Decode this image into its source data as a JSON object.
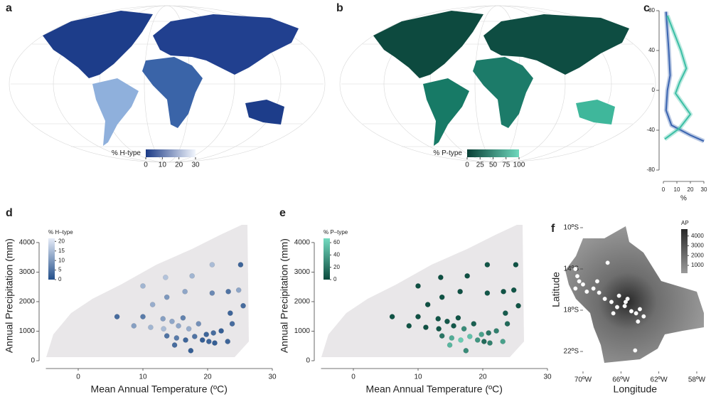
{
  "chart_data": [
    {
      "type": "map",
      "label": "a",
      "legend_title": "% H-type",
      "colorbar_lim": [
        0,
        30
      ],
      "colorbar_ticks": [
        0,
        10,
        20,
        30
      ],
      "colormap": [
        "#1b3a86",
        "#f2f6fd"
      ]
    },
    {
      "type": "map",
      "label": "b",
      "legend_title": "% P-type",
      "colorbar_lim": [
        0,
        100
      ],
      "colorbar_ticks": [
        0,
        25,
        50,
        75,
        100
      ],
      "colormap": [
        "#083f35",
        "#6fd8bd"
      ]
    },
    {
      "type": "line",
      "label": "c",
      "xlabel": "%",
      "xlim": [
        0,
        30
      ],
      "xticks": [
        0,
        10,
        20,
        30
      ],
      "ylim": [
        -90,
        80
      ],
      "yticks": [
        80,
        40,
        0,
        -40,
        -80
      ],
      "series": [
        {
          "color": "#3a64b0",
          "x": [
            2,
            4,
            5,
            3,
            2,
            6,
            20,
            30
          ],
          "values": [
            79,
            40,
            15,
            0,
            -20,
            -35,
            -45,
            -51
          ]
        },
        {
          "color": "#3cbfa5",
          "x": [
            3,
            13,
            17,
            12,
            9,
            20,
            12,
            1
          ],
          "values": [
            75,
            40,
            22,
            8,
            -3,
            -24,
            -38,
            -49
          ]
        }
      ]
    },
    {
      "type": "scatter",
      "label": "d",
      "xlabel": "Mean Annual Temperature (ºC)",
      "ylabel": "Annual Precipitation (mm)",
      "xlim": [
        -5,
        30
      ],
      "xticks": [
        0,
        10,
        20,
        30
      ],
      "ylim": [
        -200,
        4600
      ],
      "yticks": [
        0,
        1000,
        2000,
        3000,
        4000
      ],
      "legend_title": "% H–type",
      "colorbar_lim": [
        0,
        21.6
      ],
      "colorbar_ticks": [
        0,
        5,
        10,
        15,
        20
      ],
      "colormap": [
        "#234f8a",
        "#e6ecf8"
      ],
      "x": [
        20.7,
        25.1,
        10.0,
        13.5,
        17.6,
        13.7,
        16.5,
        20.7,
        23.2,
        24.8,
        11.5,
        25.5,
        23.5,
        6.0,
        10.0,
        13.1,
        16.2,
        14.5,
        18.6,
        23.8,
        8.6,
        11.2,
        13.2,
        15.5,
        17.1,
        19.8,
        20.9,
        22.1,
        13.7,
        15.2,
        16.6,
        18.0,
        19.2,
        20.2,
        21.1,
        23.1,
        14.9,
        17.4
      ],
      "y": [
        3250,
        3250,
        2530,
        2820,
        2870,
        2150,
        2340,
        2290,
        2340,
        2390,
        1900,
        1860,
        1610,
        1490,
        1490,
        1420,
        1450,
        1330,
        1250,
        1250,
        1180,
        1130,
        1080,
        1180,
        1080,
        890,
        940,
        1010,
        840,
        770,
        700,
        820,
        700,
        650,
        600,
        650,
        530,
        340
      ],
      "color_values": [
        15,
        3,
        14,
        16,
        14,
        10,
        12,
        8,
        5,
        12,
        13,
        4,
        3,
        4,
        6,
        11,
        7,
        12,
        9,
        4,
        11,
        14,
        15,
        12,
        13,
        3,
        4,
        2,
        5,
        6,
        3,
        5,
        2,
        3,
        2,
        3,
        4,
        2
      ]
    },
    {
      "type": "scatter",
      "label": "e",
      "xlabel": "Mean Annual Temperature (ºC)",
      "ylabel": "Annual Precipitation (mm)",
      "xlim": [
        -5,
        30
      ],
      "xticks": [
        0,
        10,
        20,
        30
      ],
      "ylim": [
        -200,
        4600
      ],
      "yticks": [
        0,
        1000,
        2000,
        3000,
        4000
      ],
      "legend_title": "% P–type",
      "colorbar_lim": [
        0,
        67
      ],
      "colorbar_ticks": [
        0,
        20,
        40,
        60
      ],
      "colormap": [
        "#0a4a3d",
        "#74dbc0"
      ],
      "x": [
        20.7,
        25.1,
        10.0,
        13.5,
        17.6,
        13.7,
        16.5,
        20.7,
        23.2,
        24.8,
        11.5,
        25.5,
        23.5,
        6.0,
        10.0,
        13.1,
        16.2,
        14.5,
        18.6,
        23.8,
        8.6,
        11.2,
        13.2,
        15.5,
        17.1,
        19.8,
        20.9,
        22.1,
        13.7,
        15.2,
        16.6,
        18.0,
        19.2,
        20.2,
        21.1,
        23.1,
        14.9,
        17.4
      ],
      "y": [
        3250,
        3250,
        2530,
        2820,
        2870,
        2150,
        2340,
        2290,
        2340,
        2390,
        1900,
        1860,
        1610,
        1490,
        1490,
        1420,
        1450,
        1330,
        1250,
        1250,
        1180,
        1130,
        1080,
        1180,
        1080,
        890,
        940,
        1010,
        840,
        770,
        700,
        820,
        700,
        650,
        600,
        650,
        530,
        340
      ],
      "color_values": [
        5,
        4,
        3,
        2,
        3,
        4,
        3,
        6,
        4,
        5,
        3,
        4,
        8,
        4,
        3,
        5,
        4,
        6,
        10,
        15,
        4,
        3,
        5,
        6,
        30,
        40,
        20,
        25,
        20,
        45,
        60,
        55,
        35,
        15,
        25,
        40,
        50,
        30
      ]
    },
    {
      "type": "sites",
      "label": "f",
      "xlabel": "Longitude",
      "ylabel": "Latitude",
      "xlim": [
        -72,
        -57
      ],
      "ylim": [
        -23,
        -9
      ],
      "xticks": [
        {
          "value": -70,
          "label": "70ºW"
        },
        {
          "value": -66,
          "label": "66ºW"
        },
        {
          "value": -62,
          "label": "62ºW"
        },
        {
          "value": -58,
          "label": "58ºW"
        }
      ],
      "yticks": [
        {
          "value": -10,
          "label": "10ºS"
        },
        {
          "value": -14,
          "label": "14ºS"
        },
        {
          "value": -18,
          "label": "18ºS"
        },
        {
          "value": -22,
          "label": "22ºS"
        }
      ],
      "legend_title": "AP",
      "colorbar_lim": [
        200,
        4700
      ],
      "colorbar_ticks": [
        1000,
        2000,
        3000,
        4000
      ],
      "colormap": [
        "#9a9a9a",
        "#2a2a2a"
      ],
      "x": [
        -70.8,
        -70.6,
        -70.4,
        -70.0,
        -70.8,
        -69.6,
        -68.9,
        -68.3,
        -67.7,
        -67.0,
        -66.4,
        -65.6,
        -64.9,
        -64.4,
        -63.6,
        -64.0,
        -65.3,
        -66.2,
        -64.2,
        -64.5,
        -68.5,
        -67.4,
        -65.5,
        -66.8
      ],
      "y": [
        -14.0,
        -14.7,
        -15.2,
        -15.5,
        -15.9,
        -16.2,
        -15.9,
        -16.3,
        -16.9,
        -17.2,
        -17.7,
        -17.6,
        -18.1,
        -18.3,
        -18.6,
        -17.9,
        -16.9,
        -16.6,
        -19.1,
        -21.9,
        -15.2,
        -13.4,
        -17.2,
        -18.3
      ]
    }
  ]
}
